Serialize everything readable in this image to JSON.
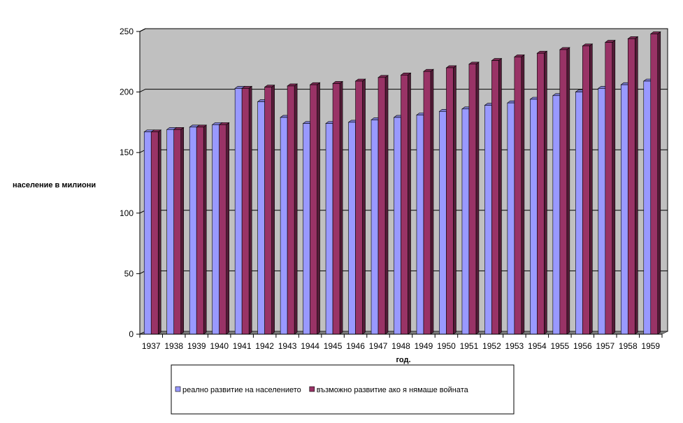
{
  "chart_data": {
    "type": "bar",
    "title": "",
    "xlabel": "год.",
    "ylabel": "население в милиони",
    "ylim": [
      0,
      250
    ],
    "yticks": [
      0,
      50,
      100,
      150,
      200,
      250
    ],
    "grid": true,
    "legend_position": "bottom",
    "categories": [
      "1937",
      "1938",
      "1939",
      "1940",
      "1941",
      "1942",
      "1943",
      "1944",
      "1945",
      "1946",
      "1947",
      "1948",
      "1949",
      "1950",
      "1951",
      "1952",
      "1953",
      "1954",
      "1955",
      "1956",
      "1957",
      "1958",
      "1959"
    ],
    "series": [
      {
        "name": "реално развитие на населението",
        "color": "#9999ff",
        "values": [
          167,
          169,
          171,
          173,
          203,
          192,
          179,
          174,
          174,
          175,
          177,
          179,
          181,
          184,
          186,
          189,
          191,
          194,
          197,
          200,
          203,
          206,
          209
        ]
      },
      {
        "name": "възможно развитие ако я нямаше войната",
        "color": "#993366",
        "values": [
          167,
          169,
          171,
          173,
          203,
          204,
          205,
          206,
          207,
          209,
          212,
          214,
          217,
          220,
          223,
          226,
          229,
          232,
          235,
          238,
          241,
          244,
          248
        ]
      }
    ],
    "colors": {
      "plot_background": "#c0c0c0",
      "floor": "#808080",
      "gridline": "#000000"
    }
  }
}
